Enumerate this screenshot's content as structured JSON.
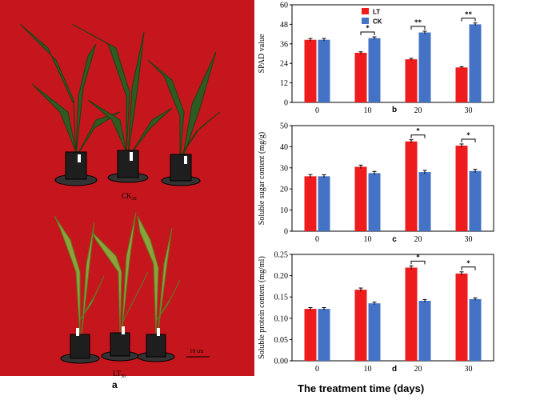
{
  "panel_a": {
    "label": "a",
    "top_group": {
      "name": "CK",
      "subscript": "30"
    },
    "bottom_group": {
      "name": "LT",
      "subscript": "30"
    },
    "scale_bar": "10 cm"
  },
  "global_xlabel": "The treatment time (days)",
  "colors": {
    "LT": "#ee1c1c",
    "CK": "#4472c4",
    "background": "#c4161c"
  },
  "chart_data": [
    {
      "type": "bar",
      "panel_label": "b",
      "categories": [
        "0",
        "10",
        "20",
        "30"
      ],
      "series": [
        {
          "name": "LT",
          "values": [
            38.5,
            30.5,
            26.5,
            21.5
          ]
        },
        {
          "name": "CK",
          "values": [
            38.5,
            39.5,
            43,
            48
          ]
        }
      ],
      "errors": {
        "LT": [
          0.8,
          0.6,
          0.6,
          0.5
        ],
        "CK": [
          0.8,
          0.8,
          0.8,
          0.8
        ]
      },
      "significance": [
        "",
        "*",
        "**",
        "**"
      ],
      "ylabel": "SPAD value",
      "ylim": [
        0,
        60
      ],
      "yticks": [
        "0",
        "12",
        "24",
        "36",
        "48",
        "60"
      ],
      "legend": "top-left",
      "grid": false
    },
    {
      "type": "bar",
      "panel_label": "c",
      "categories": [
        "0",
        "10",
        "20",
        "30"
      ],
      "series": [
        {
          "name": "LT",
          "values": [
            26,
            30.5,
            42.5,
            40.5
          ]
        },
        {
          "name": "CK",
          "values": [
            26,
            27.5,
            28,
            28.5
          ]
        }
      ],
      "errors": {
        "LT": [
          0.8,
          0.8,
          0.8,
          0.8
        ],
        "CK": [
          0.7,
          0.8,
          0.8,
          0.8
        ]
      },
      "significance": [
        "",
        "",
        "*",
        "*"
      ],
      "ylabel": "Soluble sugar content (mg/g)",
      "ylim": [
        0,
        50
      ],
      "yticks": [
        "0",
        "10",
        "20",
        "30",
        "40",
        "50"
      ],
      "grid": false
    },
    {
      "type": "bar",
      "panel_label": "d",
      "categories": [
        "0",
        "10",
        "20",
        "30"
      ],
      "series": [
        {
          "name": "LT",
          "values": [
            0.122,
            0.167,
            0.219,
            0.205
          ]
        },
        {
          "name": "CK",
          "values": [
            0.122,
            0.135,
            0.141,
            0.145
          ]
        }
      ],
      "errors": {
        "LT": [
          0.003,
          0.004,
          0.004,
          0.004
        ],
        "CK": [
          0.003,
          0.003,
          0.003,
          0.003
        ]
      },
      "significance": [
        "",
        "",
        "*",
        "*"
      ],
      "ylabel": "Soluble protein content (mg/ml)",
      "ylim": [
        0,
        0.25
      ],
      "yticks": [
        "0.00",
        "0.05",
        "0.10",
        "0.15",
        "0.20",
        "0.25"
      ],
      "grid": false
    }
  ]
}
